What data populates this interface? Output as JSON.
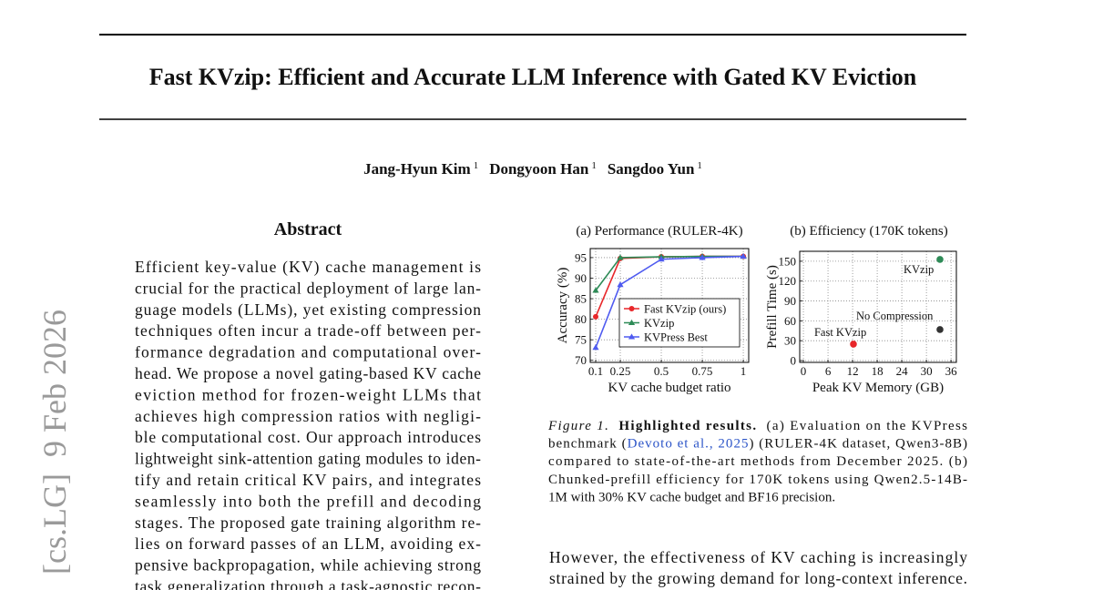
{
  "arxiv_stamp": "[cs.LG]  9 Feb 2026",
  "title": "Fast KVzip: Efficient and Accurate LLM Inference with Gated KV Eviction",
  "authors": [
    {
      "name": "Jang-Hyun Kim",
      "affiliation": "1"
    },
    {
      "name": "Dongyoon Han",
      "affiliation": "1"
    },
    {
      "name": "Sangdoo Yun",
      "affiliation": "1"
    }
  ],
  "abstract": {
    "heading": "Abstract",
    "lines": [
      "Efficient key-value (KV) cache management is",
      "crucial for the practical deployment of large lan-",
      "guage models (LLMs), yet existing compression",
      "techniques often incur a trade-off between per-",
      "formance degradation and computational over-",
      "head. We propose a novel gating-based KV cache",
      "eviction method for frozen-weight LLMs that",
      "achieves high compression ratios with negligi-",
      "ble computational cost. Our approach introduces",
      "lightweight sink-attention gating modules to iden-",
      "tify and retain critical KV pairs, and integrates",
      "seamlessly into both the prefill and decoding",
      "stages. The proposed gate training algorithm re-",
      "lies on forward passes of an LLM, avoiding ex-",
      "pensive backpropagation, while achieving strong",
      "task generalization through a task-agnostic recon-"
    ]
  },
  "chart_data": [
    {
      "type": "line",
      "title": "(a) Performance (RULER-4K)",
      "x_label": "KV cache budget ratio",
      "y_label": "Accuracy (%)",
      "x": [
        0.1,
        0.25,
        0.5,
        0.75,
        1
      ],
      "xlim": [
        0.0667,
        1.033
      ],
      "xticks": [
        0.1,
        0.25,
        0.5,
        0.75,
        1
      ],
      "ylim": [
        69.5,
        97.2
      ],
      "yticks": [
        70,
        75,
        80,
        85,
        90,
        95
      ],
      "grid": true,
      "legend": "lower right",
      "series": [
        {
          "name": "Fast KVzip (ours)",
          "color": "#e8272a",
          "marker": "circle",
          "values": [
            80.6,
            94.8,
            95.2,
            95.3,
            95.3
          ]
        },
        {
          "name": "KVzip",
          "color": "#2e8b57",
          "marker": "triangle",
          "values": [
            87,
            95,
            95.2,
            95.3,
            95.3
          ]
        },
        {
          "name": "KVPress Best",
          "color": "#4f5bf0",
          "marker": "triangle",
          "values": [
            73.1,
            88.4,
            94.6,
            95,
            95.3
          ]
        }
      ]
    },
    {
      "type": "scatter",
      "title": "(b) Efficiency (170K tokens)",
      "x_label": "Peak KV Memory (GB)",
      "y_label": "Prefill Time (s)",
      "xlim": [
        -0.9,
        37.3
      ],
      "xticks": [
        0,
        6,
        12,
        18,
        24,
        30,
        36
      ],
      "ylim": [
        -2.75,
        165
      ],
      "yticks": [
        0,
        30,
        60,
        90,
        120,
        150
      ],
      "grid": true,
      "points": [
        {
          "label": "Fast KVzip",
          "color": "#e8272a",
          "x": 12.2,
          "y": 24.8
        },
        {
          "label": "KVzip",
          "color": "#2e8b57",
          "x": 33.3,
          "y": 152.7
        },
        {
          "label": "No Compression",
          "color": "#333333",
          "x": 33.3,
          "y": 46.8
        }
      ]
    }
  ],
  "caption": {
    "lines": [
      [
        {
          "text": "Figure 1.",
          "style": "italic"
        },
        {
          "text": "  Highlighted results.",
          "style": "bold"
        },
        {
          "text": "  (a) Evaluation on the KVPress",
          "style": "normal"
        }
      ],
      [
        {
          "text": "benchmark (",
          "style": "normal"
        },
        {
          "text": "Devoto et al., 2025",
          "style": "link"
        },
        {
          "text": ") (RULER-4K dataset, Qwen3-8B)",
          "style": "normal"
        }
      ],
      [
        {
          "text": "compared to state-of-the-art methods from December 2025. (b)",
          "style": "normal"
        }
      ],
      [
        {
          "text": "Chunked-prefill efficiency for 170K tokens using Qwen2.5-14B-",
          "style": "normal"
        }
      ],
      [
        {
          "text": "1M with 30% KV cache budget and BF16 precision.",
          "style": "normal"
        }
      ]
    ]
  },
  "body": {
    "lines": [
      "However, the effectiveness of KV caching is increasingly",
      "strained by the growing demand for long-context inference."
    ]
  }
}
